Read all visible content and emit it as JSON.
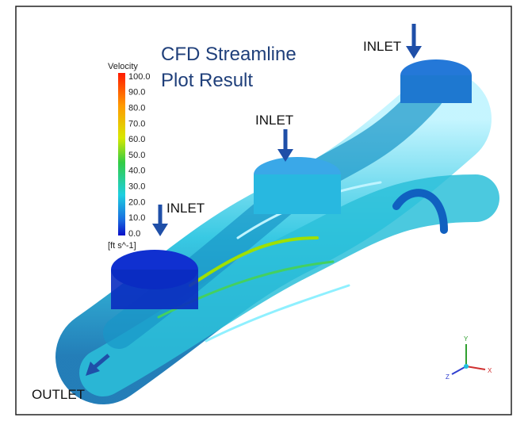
{
  "figure": {
    "title_lines": [
      "CFD Streamline",
      "Plot Result"
    ],
    "colorbar": {
      "label": "Velocity",
      "ticks": [
        "100.0",
        "90.0",
        "80.0",
        "70.0",
        "60.0",
        "50.0",
        "40.0",
        "30.0",
        "20.0",
        "10.0",
        "0.0"
      ],
      "unit": "[ft s^-1]"
    },
    "inlets": [
      "INLET",
      "INLET",
      "INLET"
    ],
    "outlet": "OUTLET",
    "axes": [
      "X",
      "Y",
      "Z"
    ]
  }
}
